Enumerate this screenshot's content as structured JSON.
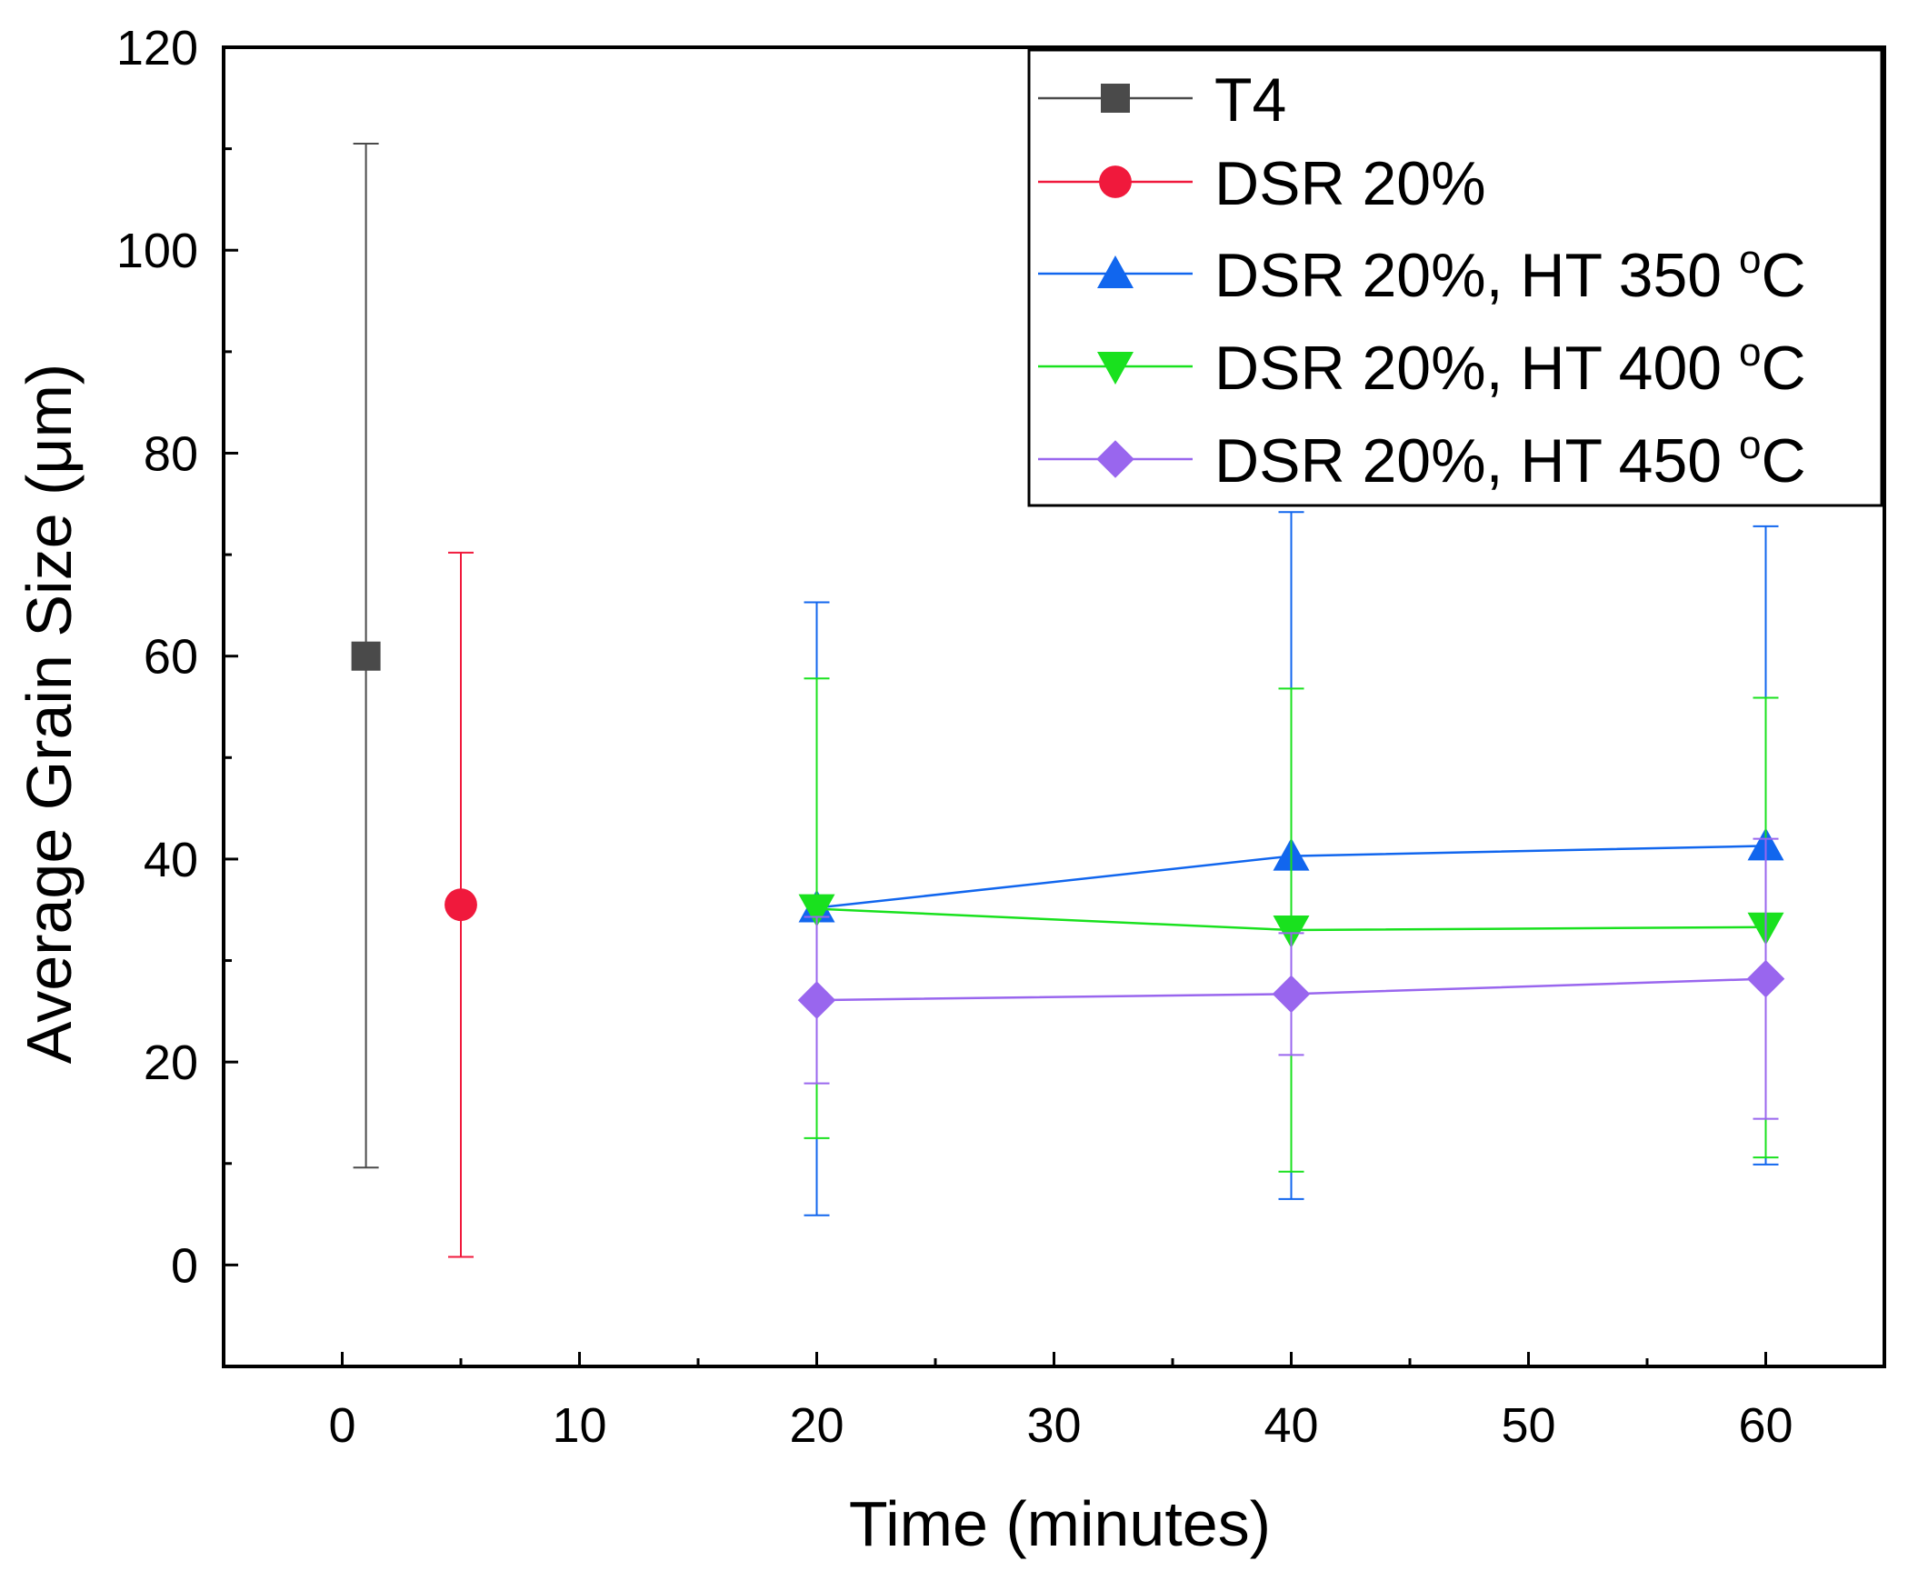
{
  "chart_data": {
    "type": "scatter",
    "title": "",
    "xlabel": "Time (minutes)",
    "ylabel": "Average Grain Size (μm)",
    "xlim": [
      -5,
      65
    ],
    "ylim": [
      -10,
      120
    ],
    "xticks": [
      0,
      10,
      20,
      30,
      40,
      50,
      60
    ],
    "yticks": [
      0,
      20,
      40,
      60,
      80,
      100,
      120
    ],
    "legend_position": "top-right",
    "series": [
      {
        "name": "T4",
        "color": "#4a4a4a",
        "marker": "square",
        "points": [
          {
            "x": 1,
            "y": 60.0,
            "err_low": 9.6,
            "err_high": 110.5
          }
        ]
      },
      {
        "name": "DSR 20%",
        "color": "#f0193c",
        "marker": "circle",
        "points": [
          {
            "x": 5,
            "y": 35.5,
            "err_low": 0.8,
            "err_high": 70.2
          }
        ]
      },
      {
        "name": "DSR 20%, HT 350 °C",
        "color": "#1166ee",
        "marker": "triangle-up",
        "points": [
          {
            "x": 20,
            "y": 35.2,
            "err_low": 4.9,
            "err_high": 65.3
          },
          {
            "x": 40,
            "y": 40.3,
            "err_low": 6.5,
            "err_high": 74.2
          },
          {
            "x": 60,
            "y": 41.3,
            "err_low": 9.9,
            "err_high": 72.8
          }
        ]
      },
      {
        "name": "DSR 20%, HT 400 °C",
        "color": "#19e11e",
        "marker": "triangle-down",
        "points": [
          {
            "x": 20,
            "y": 35.1,
            "err_low": 12.5,
            "err_high": 57.8
          },
          {
            "x": 40,
            "y": 33.0,
            "err_low": 9.2,
            "err_high": 56.8
          },
          {
            "x": 60,
            "y": 33.3,
            "err_low": 10.6,
            "err_high": 55.9
          }
        ]
      },
      {
        "name": "DSR 20%, HT 450 °C",
        "color": "#9966ee",
        "marker": "diamond",
        "points": [
          {
            "x": 20,
            "y": 26.1,
            "err_low": 17.9,
            "err_high": 34.3
          },
          {
            "x": 40,
            "y": 26.7,
            "err_low": 20.7,
            "err_high": 32.7
          },
          {
            "x": 60,
            "y": 28.2,
            "err_low": 14.4,
            "err_high": 42.0
          }
        ]
      }
    ],
    "legend": [
      {
        "label": "T4"
      },
      {
        "label": "DSR 20%"
      },
      {
        "label_main": "DSR 20%, HT 350 ",
        "label_sup": "o",
        "label_unit": "C"
      },
      {
        "label_main": "DSR 20%, HT 400 ",
        "label_sup": "o",
        "label_unit": "C"
      },
      {
        "label_main": "DSR 20%, HT 450 ",
        "label_sup": "o",
        "label_unit": "C"
      }
    ]
  }
}
